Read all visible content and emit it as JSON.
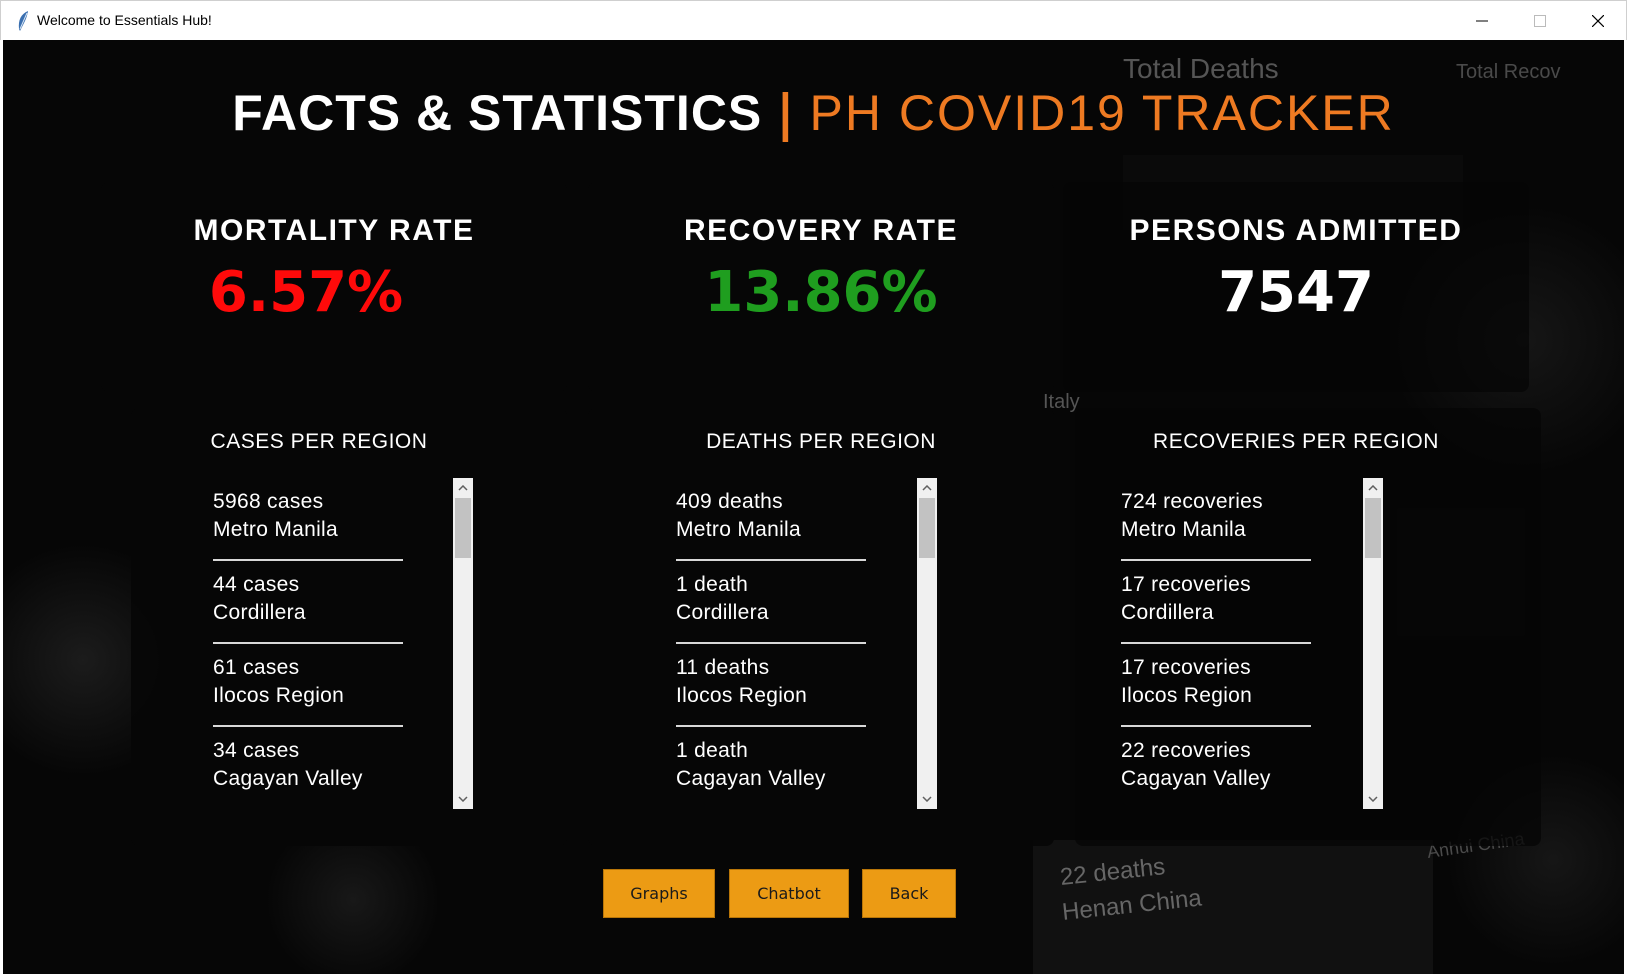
{
  "window": {
    "title": "Welcome to Essentials Hub!"
  },
  "heading": {
    "main": "FACTS & STATISTICS",
    "separator": "|",
    "sub": "PH COVID19 TRACKER"
  },
  "background_text": {
    "total_deaths": "Total Deaths",
    "total_recov": "Total Recov",
    "italy": "Italy",
    "deaths_22": "22 deaths",
    "henan": "Henan China",
    "anhui": "Anhui China"
  },
  "stats": {
    "mortality": {
      "label": "MORTALITY RATE",
      "value": "6.57%",
      "color": "#ff0a0a"
    },
    "recovery": {
      "label": "RECOVERY RATE",
      "value": "13.86%",
      "color": "#1f9e1f"
    },
    "admitted": {
      "label": "PERSONS ADMITTED",
      "value": "7547",
      "color": "#ffffff"
    }
  },
  "lists": {
    "cases": {
      "title": "CASES PER REGION",
      "items": [
        {
          "count": "5968 cases",
          "region": "Metro Manila"
        },
        {
          "count": "44 cases",
          "region": "Cordillera"
        },
        {
          "count": "61 cases",
          "region": "Ilocos Region"
        },
        {
          "count": "34 cases",
          "region": "Cagayan Valley"
        }
      ]
    },
    "deaths": {
      "title": "DEATHS PER REGION",
      "items": [
        {
          "count": "409 deaths",
          "region": "Metro Manila"
        },
        {
          "count": "1 death",
          "region": "Cordillera"
        },
        {
          "count": "11 deaths",
          "region": "Ilocos Region"
        },
        {
          "count": "1 death",
          "region": "Cagayan Valley"
        }
      ]
    },
    "recoveries": {
      "title": "RECOVERIES PER REGION",
      "items": [
        {
          "count": "724 recoveries",
          "region": "Metro Manila"
        },
        {
          "count": "17 recoveries",
          "region": "Cordillera"
        },
        {
          "count": "17 recoveries",
          "region": "Ilocos Region"
        },
        {
          "count": "22 recoveries",
          "region": "Cagayan Valley"
        }
      ]
    }
  },
  "buttons": {
    "graphs": "Graphs",
    "chatbot": "Chatbot",
    "back": "Back"
  }
}
